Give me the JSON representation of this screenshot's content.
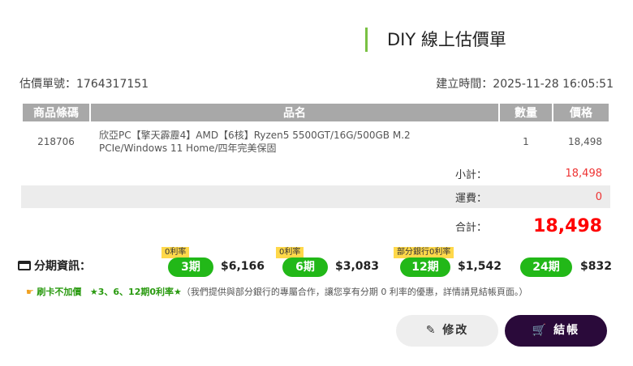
{
  "title": "DIY 線上估價單",
  "quote_no": "估價單號：1764317151",
  "created": "建立時間：2025-11-28 16:05:51",
  "table": {
    "headers": [
      "商品條碼",
      "品名",
      "數量",
      "價格"
    ],
    "rows": [
      {
        "code": "218706",
        "name": "欣亞PC【擎天霹靂4】AMD【6核】Ryzen5 5500GT/16G/500GB M.2 PCIe/Windows 11 Home/四年完美保固",
        "qty": "1",
        "price": "18,498"
      }
    ]
  },
  "summary": {
    "subtotal_label": "小計：",
    "subtotal": "18,498",
    "shipping_label": "運費：",
    "shipping": "0",
    "total_label": "合計：",
    "total": "18,498"
  },
  "installment": {
    "label": "分期資訊：",
    "plans": [
      {
        "term": "3期",
        "amount": "$6,166",
        "tag": "0利率"
      },
      {
        "term": "6期",
        "amount": "$3,083",
        "tag": "0利率"
      },
      {
        "term": "12期",
        "amount": "$1,542",
        "tag": "部分銀行0利率"
      },
      {
        "term": "24期",
        "amount": "$832",
        "tag": ""
      }
    ]
  },
  "note": {
    "highlight": "刷卡不加價",
    "star": "★3、6、12期0利率★",
    "text": "（我們提供與部分銀行的專屬合作，讓您享有分期 0 利率的優惠，詳情請見結帳頁面。）"
  },
  "buttons": {
    "edit": "修改",
    "checkout": "結帳"
  },
  "colors": {
    "accent": "#7ac143",
    "installment_green": "#22b818",
    "total_red": "#ff0000",
    "checkout_bg": "#2a0a3a"
  }
}
